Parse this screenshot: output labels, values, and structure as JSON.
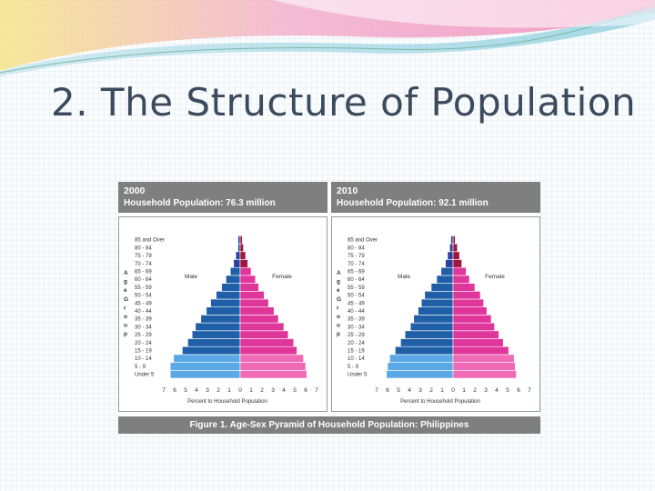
{
  "slide": {
    "title": "2. The Structure of Population"
  },
  "figure": {
    "caption": "Figure 1.  Age-Sex Pyramid of Household Population: Philippines"
  },
  "colors": {
    "male_light": "#5aa9e6",
    "male_dark": "#1f5fa8",
    "male_top": "#2a3f9e",
    "female_light": "#f06ab5",
    "female_dark": "#e0359a",
    "female_top": "#a0163f"
  },
  "chart_data": [
    {
      "type": "bar",
      "orientation": "horizontal",
      "title": "2000",
      "subtitle": "Household Population: 76.3 million",
      "ylabel": "Age Group",
      "xlabel": "Percent to Household Population",
      "legend": [
        "Male",
        "Female"
      ],
      "xlim": [
        -7,
        7
      ],
      "x_ticks": [
        "7",
        "6",
        "5",
        "4",
        "3",
        "2",
        "1",
        "0",
        "1",
        "2",
        "3",
        "4",
        "5",
        "6",
        "7"
      ],
      "categories": [
        "Under 5",
        "5 - 9",
        "10 - 14",
        "15 - 19",
        "20 - 24",
        "25 - 29",
        "30 - 34",
        "35 - 39",
        "40 - 44",
        "45 - 49",
        "50 - 54",
        "55 - 59",
        "60 - 64",
        "65 - 69",
        "70 - 74",
        "75 - 79",
        "80 - 84",
        "85 and Over"
      ],
      "category_labels": [
        "Under 5",
        "5 - 9",
        "10 - 14",
        "15 - 19",
        "20 - 24",
        "25 - 29",
        "30 - 34",
        "35 - 39",
        "40 - 44",
        "45 - 49",
        "50 - 54",
        "55 - 59",
        "60 - 64",
        "65 - 69",
        "70 - 74",
        "75 - 79",
        "80 - 84",
        "85 and Over"
      ],
      "series": [
        {
          "name": "Male",
          "values": [
            6.4,
            6.4,
            6.1,
            5.3,
            4.8,
            4.4,
            4.1,
            3.6,
            3.1,
            2.7,
            2.2,
            1.7,
            1.3,
            0.9,
            0.6,
            0.4,
            0.2,
            0.2
          ]
        },
        {
          "name": "Female",
          "values": [
            6.1,
            6.0,
            5.8,
            5.2,
            4.9,
            4.4,
            4.0,
            3.5,
            3.1,
            2.6,
            2.2,
            1.7,
            1.4,
            1.0,
            0.7,
            0.5,
            0.3,
            0.2
          ]
        }
      ]
    },
    {
      "type": "bar",
      "orientation": "horizontal",
      "title": "2010",
      "subtitle": "Household Population: 92.1 million",
      "ylabel": "Age Group",
      "xlabel": "Percent to Household Population",
      "legend": [
        "Male",
        "Female"
      ],
      "xlim": [
        -7,
        7
      ],
      "x_ticks": [
        "7",
        "6",
        "5",
        "4",
        "3",
        "2",
        "1",
        "0",
        "1",
        "2",
        "3",
        "4",
        "5",
        "6",
        "7"
      ],
      "categories": [
        "Under 5",
        "5 - 9",
        "10 - 14",
        "15 - 19",
        "20 - 24",
        "25 - 29",
        "30 - 34",
        "35 - 39",
        "40 - 44",
        "45 - 49",
        "50 - 54",
        "55 - 59",
        "60 - 64",
        "65 - 69",
        "70 - 74",
        "75 - 79",
        "80 - 84",
        "85 and Over"
      ],
      "category_labels": [
        "Under 5",
        "5 - 9",
        "10 - 14",
        "15 - 19",
        "20 - 24",
        "25 - 29",
        "30 - 34",
        "35 - 39",
        "40 - 44",
        "45 - 49",
        "50 - 54",
        "55 - 59",
        "60 - 64",
        "65 - 69",
        "70 - 74",
        "75 - 79",
        "80 - 84",
        "85 and Over"
      ],
      "series": [
        {
          "name": "Male",
          "values": [
            6.1,
            6.0,
            5.8,
            5.3,
            4.8,
            4.4,
            3.9,
            3.6,
            3.2,
            2.9,
            2.6,
            2.0,
            1.5,
            1.1,
            0.7,
            0.5,
            0.3,
            0.2
          ]
        },
        {
          "name": "Female",
          "values": [
            5.8,
            5.7,
            5.6,
            5.1,
            4.6,
            4.2,
            3.8,
            3.5,
            3.1,
            2.8,
            2.5,
            2.0,
            1.5,
            1.2,
            0.8,
            0.6,
            0.4,
            0.2
          ]
        }
      ]
    }
  ]
}
